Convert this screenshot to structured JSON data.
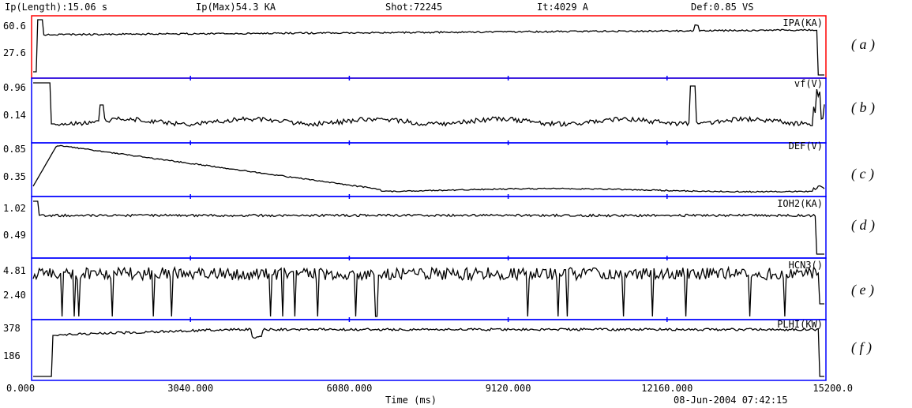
{
  "header": {
    "ip_length": "Ip(Length):15.06 s",
    "ip_max": "Ip(Max)54.3 KA",
    "shot": "Shot:72245",
    "it": "It:4029 A",
    "def": "Def:0.85 VS"
  },
  "footer": {
    "xlabel": "Time (ms)",
    "date": "08-Jun-2004 07:42:15"
  },
  "colors": {
    "frame": "#0000ff",
    "active_frame": "#ff0000",
    "trace": "#000000"
  },
  "chart_data": [
    {
      "type": "line",
      "title": "IPA(KA)",
      "caption": "( a )",
      "ticks": [
        "60.6",
        "27.6"
      ],
      "xlim": [
        0,
        15200
      ]
    },
    {
      "type": "line",
      "title": "vf(V)",
      "caption": "( b )",
      "ticks": [
        "0.96",
        "0.14"
      ],
      "xlim": [
        0,
        15200
      ]
    },
    {
      "type": "line",
      "title": "DEF(V)",
      "caption": "( c )",
      "ticks": [
        "0.85",
        "0.35"
      ],
      "xlim": [
        0,
        15200
      ]
    },
    {
      "type": "line",
      "title": "IOH2(KA)",
      "caption": "( d )",
      "ticks": [
        "1.02",
        "0.49"
      ],
      "xlim": [
        0,
        15200
      ]
    },
    {
      "type": "line",
      "title": "HCN3()",
      "caption": "( e )",
      "ticks": [
        "4.81",
        "2.40"
      ],
      "xlim": [
        0,
        15200
      ]
    },
    {
      "type": "line",
      "title": "PLHI(KW)",
      "caption": "( f )",
      "ticks": [
        "378",
        "186"
      ],
      "xlim": [
        0,
        15200
      ],
      "x_ticks": [
        "0.000",
        "3040.000",
        "6080.000",
        "9120.000",
        "12160.000",
        "15200.0"
      ]
    }
  ]
}
